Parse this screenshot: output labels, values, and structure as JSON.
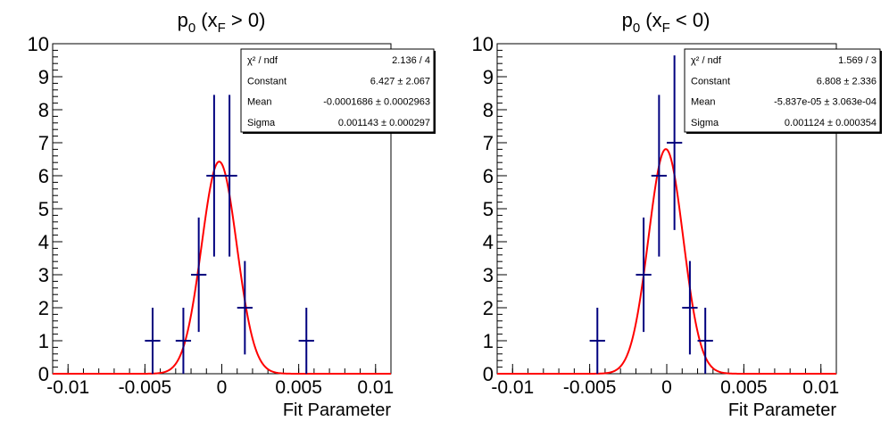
{
  "chart_data": [
    {
      "type": "histogram-with-fit",
      "title_main": "p",
      "title_sub": "0",
      "title_paren_open": " (x",
      "title_paren_sub": "F",
      "title_paren_close": " > 0)",
      "xlabel": "Fit Parameter",
      "xlim": [
        -0.011,
        0.011
      ],
      "ylim": [
        0,
        10
      ],
      "x_ticks": [
        -0.01,
        -0.005,
        0,
        0.005,
        0.01
      ],
      "x_tick_labels": [
        "-0.01",
        "-0.005",
        "0",
        "0.005",
        "0.01"
      ],
      "y_ticks": [
        0,
        1,
        2,
        3,
        4,
        5,
        6,
        7,
        8,
        9,
        10
      ],
      "y_tick_labels": [
        "0",
        "1",
        "2",
        "3",
        "4",
        "5",
        "6",
        "7",
        "8",
        "9",
        "10"
      ],
      "bin_width": 0.001,
      "bins": [
        {
          "x": -0.0045,
          "count": 1
        },
        {
          "x": -0.0025,
          "count": 1
        },
        {
          "x": -0.0015,
          "count": 3
        },
        {
          "x": -0.0005,
          "count": 6
        },
        {
          "x": 0.0005,
          "count": 6
        },
        {
          "x": 0.0015,
          "count": 2
        },
        {
          "x": 0.0055,
          "count": 1
        }
      ],
      "fit": {
        "constant": 6.427,
        "mean": -0.0001686,
        "sigma": 0.001143
      },
      "stats": [
        {
          "label": "χ² / ndf",
          "value": "2.136 / 4"
        },
        {
          "label": "Constant",
          "value": "6.427 ± 2.067"
        },
        {
          "label": "Mean",
          "value": "-0.0001686 ± 0.0002963"
        },
        {
          "label": "Sigma",
          "value": "0.001143 ± 0.000297"
        }
      ],
      "colors": {
        "data": "#00007f",
        "fit": "#ff0000"
      }
    },
    {
      "type": "histogram-with-fit",
      "title_main": "p",
      "title_sub": "0",
      "title_paren_open": " (x",
      "title_paren_sub": "F",
      "title_paren_close": " < 0)",
      "xlabel": "Fit Parameter",
      "xlim": [
        -0.011,
        0.011
      ],
      "ylim": [
        0,
        10
      ],
      "x_ticks": [
        -0.01,
        -0.005,
        0,
        0.005,
        0.01
      ],
      "x_tick_labels": [
        "-0.01",
        "-0.005",
        "0",
        "0.005",
        "0.01"
      ],
      "y_ticks": [
        0,
        1,
        2,
        3,
        4,
        5,
        6,
        7,
        8,
        9,
        10
      ],
      "y_tick_labels": [
        "0",
        "1",
        "2",
        "3",
        "4",
        "5",
        "6",
        "7",
        "8",
        "9",
        "10"
      ],
      "bin_width": 0.001,
      "bins": [
        {
          "x": -0.0045,
          "count": 1
        },
        {
          "x": -0.0015,
          "count": 3
        },
        {
          "x": -0.0005,
          "count": 6
        },
        {
          "x": 0.0005,
          "count": 7
        },
        {
          "x": 0.0015,
          "count": 2
        },
        {
          "x": 0.0025,
          "count": 1
        }
      ],
      "fit": {
        "constant": 6.808,
        "mean": -5.837e-05,
        "sigma": 0.001124
      },
      "stats": [
        {
          "label": "χ² / ndf",
          "value": "1.569 / 3"
        },
        {
          "label": "Constant",
          "value": "6.808 ± 2.336"
        },
        {
          "label": "Mean",
          "value": "-5.837e-05 ± 3.063e-04"
        },
        {
          "label": "Sigma",
          "value": "0.001124 ± 0.000354"
        }
      ],
      "colors": {
        "data": "#00007f",
        "fit": "#ff0000"
      }
    }
  ]
}
